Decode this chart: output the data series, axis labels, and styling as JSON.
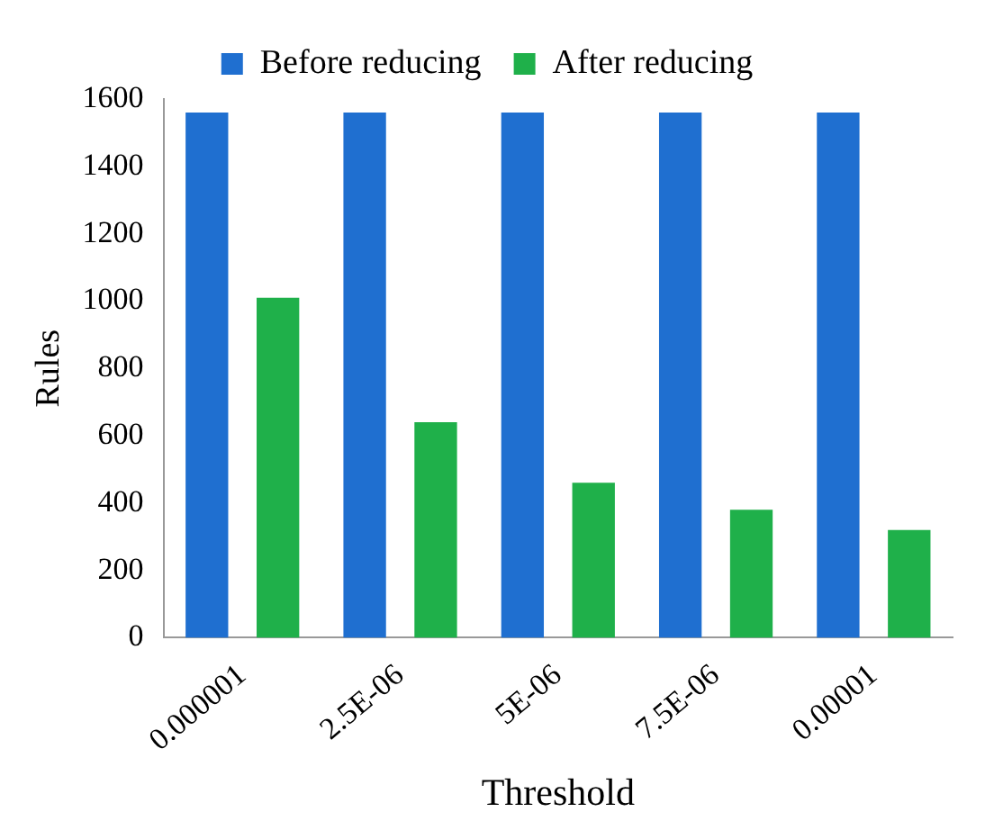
{
  "chart_data": {
    "type": "bar",
    "xlabel": "Threshold",
    "ylabel": "Rules",
    "categories": [
      "0.000001",
      "2.5E-06",
      "5E-06",
      "7.5E-06",
      "0.00001"
    ],
    "series": [
      {
        "name": "Before reducing",
        "color": "#1f6fd0",
        "values": [
          1560,
          1560,
          1560,
          1560,
          1560
        ]
      },
      {
        "name": "After reducing",
        "color": "#1fb04a",
        "values": [
          1010,
          640,
          460,
          380,
          320
        ]
      }
    ],
    "ylim": [
      0,
      1600
    ],
    "yticks": [
      0,
      200,
      400,
      600,
      800,
      1000,
      1200,
      1400,
      1600
    ],
    "grid": false,
    "legend": "top"
  }
}
